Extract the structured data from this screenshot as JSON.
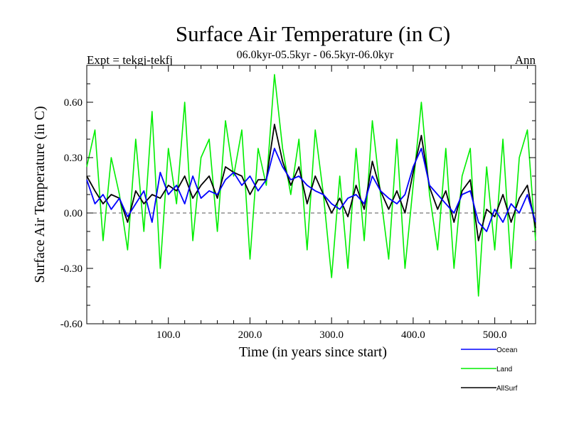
{
  "chart_data": {
    "type": "line",
    "title": "Surface Air Temperature (in C)",
    "subtitle": "06.0kyr-05.5kyr - 06.5kyr-06.0kyr",
    "expt_label": "Expt = tekgj-tekfj",
    "season_label": "Ann",
    "xlabel": "Time (in years since start)",
    "ylabel": "Surface Air Temperature (in C)",
    "xlim": [
      0,
      550
    ],
    "ylim": [
      -0.6,
      0.8
    ],
    "xticks": [
      100,
      200,
      300,
      400,
      500
    ],
    "xtick_labels": [
      "100.0",
      "200.0",
      "300.0",
      "400.0",
      "500.0"
    ],
    "yticks": [
      -0.6,
      -0.3,
      0.0,
      0.3,
      0.6
    ],
    "ytick_labels": [
      "-0.60",
      "-0.30",
      "0.00",
      "0.30",
      "0.60"
    ],
    "zero_line": true,
    "x": [
      0,
      10,
      20,
      30,
      40,
      50,
      60,
      70,
      80,
      90,
      100,
      110,
      120,
      130,
      140,
      150,
      160,
      170,
      180,
      190,
      200,
      210,
      220,
      230,
      240,
      250,
      260,
      270,
      280,
      290,
      300,
      310,
      320,
      330,
      340,
      350,
      360,
      370,
      380,
      390,
      400,
      410,
      420,
      430,
      440,
      450,
      460,
      470,
      480,
      490,
      500,
      510,
      520,
      530,
      540,
      550
    ],
    "series": [
      {
        "name": "Ocean",
        "color": "#0000ff",
        "values": [
          0.18,
          0.05,
          0.1,
          0.02,
          0.08,
          -0.02,
          0.05,
          0.12,
          -0.05,
          0.22,
          0.1,
          0.15,
          0.05,
          0.2,
          0.08,
          0.12,
          0.1,
          0.18,
          0.22,
          0.15,
          0.2,
          0.12,
          0.18,
          0.35,
          0.25,
          0.18,
          0.2,
          0.15,
          0.12,
          0.1,
          0.05,
          0.02,
          0.08,
          0.1,
          0.05,
          0.2,
          0.12,
          0.08,
          0.05,
          0.1,
          0.25,
          0.35,
          0.15,
          0.1,
          0.05,
          0.0,
          0.1,
          0.12,
          -0.05,
          -0.1,
          0.02,
          -0.05,
          0.05,
          0.0,
          0.1,
          -0.05
        ]
      },
      {
        "name": "Land",
        "color": "#00ee00",
        "values": [
          0.25,
          0.45,
          -0.15,
          0.3,
          0.1,
          -0.2,
          0.4,
          -0.1,
          0.55,
          -0.3,
          0.35,
          0.05,
          0.6,
          -0.15,
          0.3,
          0.4,
          -0.1,
          0.5,
          0.2,
          0.45,
          -0.25,
          0.35,
          0.15,
          0.75,
          0.35,
          0.1,
          0.4,
          -0.2,
          0.45,
          0.1,
          -0.35,
          0.2,
          -0.3,
          0.35,
          -0.15,
          0.5,
          0.1,
          -0.25,
          0.4,
          -0.3,
          0.15,
          0.6,
          0.1,
          -0.2,
          0.35,
          -0.3,
          0.2,
          0.35,
          -0.45,
          0.25,
          -0.2,
          0.4,
          -0.3,
          0.3,
          0.45,
          -0.15
        ]
      },
      {
        "name": "AllSurf",
        "color": "#000000",
        "values": [
          0.2,
          0.12,
          0.05,
          0.1,
          0.08,
          -0.05,
          0.12,
          0.05,
          0.1,
          0.08,
          0.15,
          0.12,
          0.2,
          0.08,
          0.15,
          0.2,
          0.08,
          0.25,
          0.22,
          0.2,
          0.1,
          0.18,
          0.18,
          0.48,
          0.28,
          0.15,
          0.25,
          0.05,
          0.2,
          0.1,
          0.0,
          0.08,
          -0.02,
          0.15,
          0.02,
          0.28,
          0.12,
          0.02,
          0.12,
          0.0,
          0.22,
          0.42,
          0.14,
          0.02,
          0.12,
          -0.05,
          0.12,
          0.18,
          -0.15,
          0.02,
          -0.02,
          0.1,
          -0.05,
          0.08,
          0.15,
          -0.08
        ]
      }
    ]
  }
}
